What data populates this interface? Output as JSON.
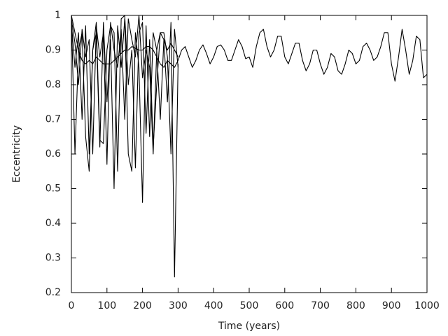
{
  "chart_data": {
    "type": "line",
    "x_label": "Time (years)",
    "y_label": "Eccentricity",
    "xlim": [
      0,
      1000
    ],
    "xticks": [
      0,
      100,
      200,
      300,
      400,
      500,
      600,
      700,
      800,
      900,
      1000
    ],
    "ylim": [
      0.2,
      1
    ],
    "yticks": [
      0.2,
      0.3,
      0.4,
      0.5,
      0.6,
      0.7,
      0.8,
      0.9,
      1
    ],
    "grid": false,
    "x": [
      0,
      10,
      20,
      30,
      40,
      50,
      60,
      70,
      80,
      90,
      100,
      110,
      120,
      130,
      140,
      150,
      160,
      170,
      180,
      190,
      200,
      210,
      220,
      230,
      240,
      250,
      260,
      270,
      280,
      290,
      300,
      310,
      320,
      330,
      340,
      350,
      360,
      370,
      380,
      390,
      400,
      410,
      420,
      430,
      440,
      450,
      460,
      470,
      480,
      490,
      500,
      510,
      520,
      530,
      540,
      550,
      560,
      570,
      580,
      590,
      600,
      610,
      620,
      630,
      640,
      650,
      660,
      670,
      680,
      690,
      700,
      710,
      720,
      730,
      740,
      750,
      760,
      770,
      780,
      790,
      800,
      810,
      820,
      830,
      840,
      850,
      860,
      870,
      880,
      890,
      900,
      910,
      920,
      930,
      940,
      950,
      960,
      970,
      980,
      990,
      1000
    ],
    "series": [
      {
        "color": "#000000",
        "values": [
          1.0,
          0.95,
          0.9,
          0.87,
          0.86,
          0.87,
          0.86,
          0.88,
          0.87,
          0.86,
          0.86,
          0.86,
          0.87,
          0.88,
          0.89,
          0.9,
          0.9,
          0.91,
          0.905,
          0.9,
          0.9,
          0.91,
          0.91,
          0.9,
          0.88,
          0.86,
          0.85,
          0.87,
          0.86,
          0.85,
          0.87,
          0.9,
          0.91,
          0.88,
          0.85,
          0.87,
          0.9,
          0.915,
          0.89,
          0.86,
          0.88,
          0.91,
          0.915,
          0.9,
          0.87,
          0.87,
          0.9,
          0.93,
          0.91,
          0.875,
          0.88,
          0.85,
          0.91,
          0.95,
          0.96,
          0.91,
          0.88,
          0.9,
          0.94,
          0.94,
          0.88,
          0.86,
          0.89,
          0.92,
          0.92,
          0.87,
          0.84,
          0.86,
          0.9,
          0.9,
          0.86,
          0.83,
          0.85,
          0.89,
          0.88,
          0.84,
          0.83,
          0.86,
          0.9,
          0.89,
          0.86,
          0.87,
          0.91,
          0.92,
          0.9,
          0.87,
          0.88,
          0.91,
          0.95,
          0.95,
          0.86,
          0.81,
          0.88,
          0.96,
          0.9,
          0.83,
          0.87,
          0.94,
          0.93,
          0.82,
          0.83
        ]
      },
      {
        "color": "#000000",
        "values": [
          1.0,
          0.6,
          0.9,
          0.95,
          0.65,
          0.55,
          0.9,
          0.95,
          0.62,
          0.98,
          0.75,
          0.93,
          0.5,
          0.97,
          0.85,
          0.99,
          0.6,
          0.55,
          0.95,
          0.85,
          0.46,
          0.97,
          0.65,
          0.95,
          0.9,
          0.7,
          0.93,
          0.75,
          0.98,
          0.245,
          0.86,
          null,
          null,
          null,
          null,
          null,
          null,
          null,
          null,
          null,
          null,
          null,
          null,
          null,
          null,
          null,
          null,
          null,
          null,
          null,
          null,
          null,
          null,
          null,
          null,
          null,
          null,
          null,
          null,
          null,
          null,
          null,
          null,
          null,
          null,
          null,
          null,
          null,
          null,
          null,
          null,
          null,
          null,
          null,
          null,
          null,
          null,
          null,
          null,
          null,
          null,
          null,
          null,
          null,
          null,
          null,
          null,
          null,
          null,
          null,
          null,
          null,
          null,
          null,
          null,
          null,
          null,
          null,
          null,
          null,
          null
        ]
      },
      {
        "color": "#000000",
        "values": [
          0.98,
          0.85,
          0.95,
          0.7,
          0.97,
          0.6,
          0.9,
          0.98,
          0.64,
          0.63,
          0.9,
          0.97,
          0.95,
          0.55,
          0.99,
          1.0,
          0.8,
          0.9,
          0.56,
          0.95,
          0.98,
          0.66,
          0.93,
          0.62,
          0.8,
          0.95,
          0.95,
          0.88,
          0.6,
          0.96,
          0.85,
          null,
          null,
          null,
          null,
          null,
          null,
          null,
          null,
          null,
          null,
          null,
          null,
          null,
          null,
          null,
          null,
          null,
          null,
          null,
          null,
          null,
          null,
          null,
          null,
          null,
          null,
          null,
          null,
          null,
          null,
          null,
          null,
          null,
          null,
          null,
          null,
          null,
          null,
          null,
          null,
          null,
          null,
          null,
          null,
          null,
          null,
          null,
          null,
          null,
          null,
          null,
          null,
          null,
          null,
          null,
          null,
          null,
          null,
          null,
          null,
          null,
          null,
          null,
          null,
          null,
          null,
          null,
          null,
          null,
          null
        ]
      },
      {
        "color": "#000000",
        "values": [
          0.99,
          0.92,
          0.8,
          0.96,
          0.88,
          0.93,
          0.6,
          0.97,
          0.88,
          0.95,
          0.57,
          0.98,
          0.9,
          0.85,
          0.96,
          0.7,
          0.99,
          0.93,
          0.88,
          1.0,
          0.82,
          0.9,
          0.85,
          0.6,
          0.9,
          0.95,
          0.93,
          0.9,
          0.92,
          0.9,
          0.88,
          null,
          null,
          null,
          null,
          null,
          null,
          null,
          null,
          null,
          null,
          null,
          null,
          null,
          null,
          null,
          null,
          null,
          null,
          null,
          null,
          null,
          null,
          null,
          null,
          null,
          null,
          null,
          null,
          null,
          null,
          null,
          null,
          null,
          null,
          null,
          null,
          null,
          null,
          null,
          null,
          null,
          null,
          null,
          null,
          null,
          null,
          null,
          null,
          null,
          null,
          null,
          null,
          null,
          null,
          null,
          null,
          null,
          null,
          null,
          null,
          null,
          null,
          null,
          null,
          null,
          null,
          null,
          null,
          null,
          null
        ]
      }
    ]
  }
}
